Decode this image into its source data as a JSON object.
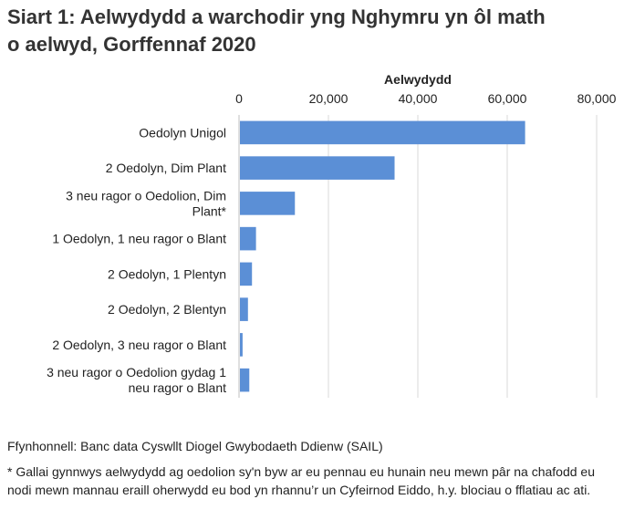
{
  "title_line1": "Siart 1: Aelwydydd a warchodir yng Nghymru yn ôl math",
  "title_line2": "o aelwyd, Gorffennaf 2020",
  "source": "Ffynhonnell: Banc data Cyswllt Diogel Gwybodaeth Ddienw (SAIL)",
  "footnote": "* Gallai gynnwys aelwydydd ag oedolion sy'n byw ar eu pennau eu hunain neu mewn pâr na chafodd eu nodi mewn mannau eraill oherwydd eu bod yn rhannu’r un Cyfeirnod Eiddo, h.y. blociau o fflatiau ac ati.",
  "chart_data": {
    "type": "bar",
    "orientation": "horizontal",
    "xlabel": "Aelwydydd",
    "xlabel_position": "top",
    "xlim": [
      0,
      80000
    ],
    "x_ticks": [
      {
        "value": 0,
        "label": "0"
      },
      {
        "value": 20000,
        "label": "20,000"
      },
      {
        "value": 40000,
        "label": "40,000"
      },
      {
        "value": 60000,
        "label": "60,000"
      },
      {
        "value": 80000,
        "label": "80,000"
      }
    ],
    "grid": true,
    "bar_color": "#5b8fd6",
    "categories": [
      [
        "Oedolyn Unigol"
      ],
      [
        "2 Oedolyn, Dim Plant"
      ],
      [
        "3 neu ragor o Oedolion, Dim",
        "Plant*"
      ],
      [
        "1 Oedolyn, 1 neu ragor o Blant"
      ],
      [
        "2 Oedolyn, 1 Plentyn"
      ],
      [
        "2 Oedolyn, 2 Blentyn"
      ],
      [
        "2 Oedolyn, 3 neu ragor o Blant"
      ],
      [
        "3 neu ragor o Oedolion gydag 1",
        "neu ragor o Blant"
      ]
    ],
    "values": [
      64000,
      34800,
      12500,
      3800,
      2900,
      2000,
      800,
      2300
    ]
  }
}
